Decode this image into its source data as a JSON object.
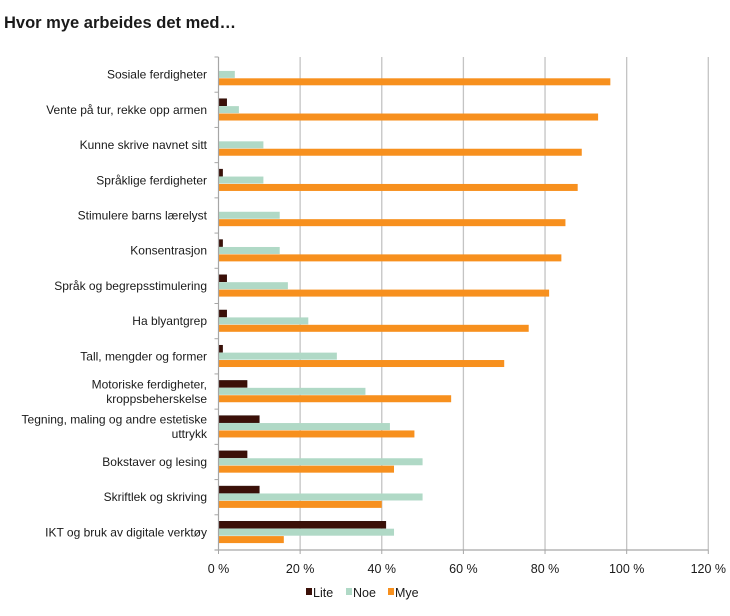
{
  "chart_data": {
    "type": "bar",
    "orientation": "horizontal",
    "title": "Hvor mye arbeides det med…",
    "xlabel": "",
    "ylabel": "",
    "xlim": [
      0,
      120
    ],
    "x_ticks": [
      0,
      20,
      40,
      60,
      80,
      100,
      120
    ],
    "x_tick_labels": [
      "0 %",
      "20 %",
      "40 %",
      "60 %",
      "80 %",
      "100 %",
      "120 %"
    ],
    "grid": "vertical",
    "legend_position": "bottom",
    "categories": [
      [
        "Sosiale ferdigheter"
      ],
      [
        "Vente på tur, rekke opp armen"
      ],
      [
        "Kunne skrive navnet sitt"
      ],
      [
        "Språklige ferdigheter"
      ],
      [
        "Stimulere barns lærelyst"
      ],
      [
        "Konsentrasjon"
      ],
      [
        "Språk og begrepsstimulering"
      ],
      [
        "Ha blyantgrep"
      ],
      [
        "Tall, mengder og former"
      ],
      [
        "Motoriske ferdigheter,",
        "kroppsbeherskelse"
      ],
      [
        "Tegning, maling og andre estetiske",
        "uttrykk"
      ],
      [
        "Bokstaver og lesing"
      ],
      [
        "Skriftlek og skriving"
      ],
      [
        "IKT og bruk av digitale verktøy"
      ]
    ],
    "series": [
      {
        "name": "Lite",
        "color": "#3b1008",
        "values": [
          0,
          2,
          0,
          1,
          0,
          1,
          2,
          2,
          1,
          7,
          10,
          7,
          10,
          41
        ]
      },
      {
        "name": "Noe",
        "color": "#b0d9c6",
        "values": [
          4,
          5,
          11,
          11,
          15,
          15,
          17,
          22,
          29,
          36,
          42,
          50,
          50,
          43
        ]
      },
      {
        "name": "Mye",
        "color": "#f7901e",
        "values": [
          96,
          93,
          89,
          88,
          85,
          84,
          81,
          76,
          70,
          57,
          48,
          43,
          40,
          16
        ]
      }
    ],
    "gridline_color": "#c4c4c4",
    "axis_color": "#a6a6a6"
  }
}
